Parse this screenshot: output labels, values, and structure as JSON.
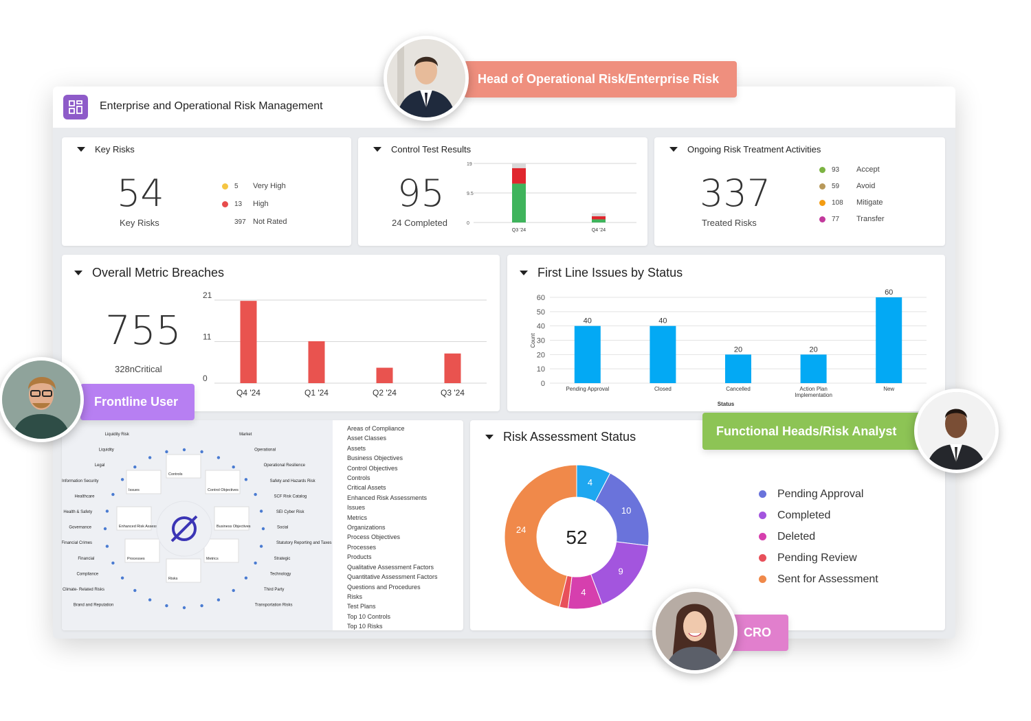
{
  "app": {
    "title": "Enterprise and Operational Risk Management",
    "icon": "dashboard-grid-icon"
  },
  "personas": {
    "head": "Head of Operational Risk/Enterprise Risk",
    "frontline": "Frontline User",
    "functional": "Functional Heads/Risk Analyst",
    "cro": "CRO"
  },
  "key_risks": {
    "title": "Key Risks",
    "value": "54",
    "label": "Key Risks",
    "legend": [
      {
        "count": "5",
        "label": "Very High",
        "color": "#f5c542"
      },
      {
        "count": "13",
        "label": "High",
        "color": "#e74c4c"
      },
      {
        "count": "397",
        "label": "Not Rated",
        "color": ""
      }
    ]
  },
  "control_tests": {
    "title": "Control Test Results",
    "value": "95",
    "label": "24 Completed",
    "chart_data": {
      "type": "bar",
      "stacked": true,
      "categories": [
        "Q3 '24",
        "Q4 '24"
      ],
      "y_ticks": [
        "19",
        "9.5",
        "0"
      ],
      "ylim": [
        0,
        19
      ],
      "series": [
        {
          "values": [
            12.5,
            1
          ],
          "color": "#3fb45c"
        },
        {
          "values": [
            5,
            1
          ],
          "color": "#e0262e"
        },
        {
          "values": [
            1.5,
            1
          ],
          "color": "#d9d9d9"
        }
      ]
    }
  },
  "treatment": {
    "title": "Ongoing Risk Treatment Activities",
    "value": "337",
    "label": "Treated Risks",
    "legend": [
      {
        "count": "93",
        "label": "Accept",
        "color": "#7cb342"
      },
      {
        "count": "59",
        "label": "Avoid",
        "color": "#b8995a"
      },
      {
        "count": "108",
        "label": "Mitigate",
        "color": "#f39c12"
      },
      {
        "count": "77",
        "label": "Transfer",
        "color": "#c2399c"
      }
    ]
  },
  "metric_breaches": {
    "title": "Overall Metric Breaches",
    "value": "755",
    "label": "328nCritical",
    "chart_data": {
      "type": "bar",
      "categories": [
        "Q4 '24",
        "Q1 '24",
        "Q2 '24",
        "Q3 '24"
      ],
      "values": [
        20.8,
        10.6,
        3.9,
        7.5
      ],
      "y_ticks": [
        "21",
        "11",
        "0"
      ],
      "ylim": [
        0,
        21
      ],
      "color": "#e9534f"
    }
  },
  "first_line": {
    "title": "First Line Issues by Status",
    "chart_data": {
      "type": "bar",
      "categories": [
        "Pending Approval",
        "Closed",
        "Cancelled",
        "Action Plan Implementation",
        "New"
      ],
      "values": [
        40,
        40,
        20,
        20,
        60
      ],
      "y_ticks": [
        "60",
        "50",
        "40",
        "30",
        "20",
        "10",
        "0"
      ],
      "ylim": [
        0,
        60
      ],
      "xlabel": "Status",
      "ylabel": "Count",
      "color": "#03a9f4"
    }
  },
  "framework": {
    "left_labels": [
      "Liquidity Risk",
      "Market",
      "Liquidity",
      "Operational",
      "Legal",
      "Operational Resilience",
      "Information Security",
      "Safety and Hazards Risk",
      "Healthcare",
      "SCF Risk Catalog",
      "Health & Safety",
      "SEI Cyber Risk",
      "Governance",
      "Social",
      "Financial Crimes",
      "Statutory Reporting and Taxes",
      "Financial",
      "Strategic",
      "Compliance",
      "Technology",
      "Climate- Related Risks",
      "Third Party",
      "Brand and Reputation",
      "Transportation Risks"
    ],
    "inner_labels": [
      "Controls",
      "Issues",
      "Control Objectives",
      "Enhanced Risk Assessments",
      "Business Objectives",
      "Processes",
      "Metrics",
      "Risks"
    ],
    "objects": [
      "Areas of Compliance",
      "Asset Classes",
      "Assets",
      "Business Objectives",
      "Control Objectives",
      "Controls",
      "Critical Assets",
      "Enhanced Risk Assessments",
      "Issues",
      "Metrics",
      "Organizations",
      "Process Objectives",
      "Processes",
      "Products",
      "Qualitative Assessment Factors",
      "Quantitative Assessment Factors",
      "Questions and Procedures",
      "Risks",
      "Test Plans",
      "Top 10 Controls",
      "Top 10 Risks"
    ]
  },
  "risk_assessment": {
    "title": "Risk Assessment Status",
    "total": "52",
    "chart_data": {
      "type": "pie",
      "donut": true,
      "slices": [
        {
          "label": "",
          "value": 4,
          "color": "#1ea7f0"
        },
        {
          "label": "",
          "value": 10,
          "color": "#6a73db"
        },
        {
          "label": "",
          "value": 9,
          "color": "#a355de"
        },
        {
          "label": "",
          "value": 4,
          "color": "#d63fae"
        },
        {
          "label": "",
          "value": 1,
          "color": "#e8505b"
        },
        {
          "label": "",
          "value": 24,
          "color": "#f0894a"
        }
      ],
      "legend": [
        {
          "label": "Pending Approval",
          "color": "#6a73db"
        },
        {
          "label": "Completed",
          "color": "#a355de"
        },
        {
          "label": "Deleted",
          "color": "#d63fae"
        },
        {
          "label": "Pending Review",
          "color": "#e8505b"
        },
        {
          "label": "Sent for Assessment",
          "color": "#f0894a"
        }
      ]
    }
  }
}
